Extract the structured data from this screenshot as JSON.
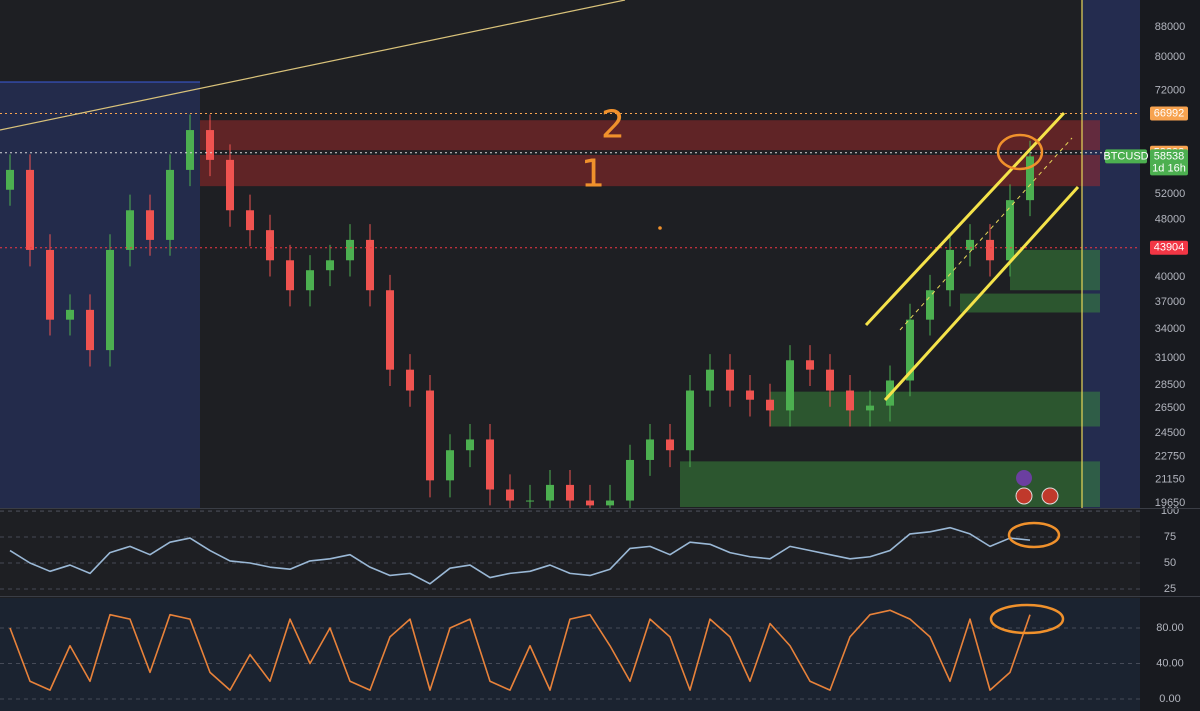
{
  "chart_data": [
    {
      "type": "candlestick",
      "symbol": "BTCUSD",
      "last_price": 58538,
      "countdown": "1d 16h",
      "log_scale": true,
      "ylim": [
        19340,
        95800
      ],
      "yticks": [
        88000,
        80000,
        72000,
        52000,
        48000,
        40000,
        37000,
        34000,
        31000,
        28500,
        26500,
        24500,
        22750,
        21150,
        19650
      ],
      "up_color": "#4caf50",
      "down_color": "#ef5350",
      "open": [
        52700,
        56100,
        43600,
        35000,
        36100,
        31800,
        43600,
        49400,
        45000,
        56100,
        63600,
        57900,
        49400,
        46400,
        42200,
        38400,
        40900,
        42200,
        45000,
        38400,
        29900,
        28000,
        21100,
        23200,
        24000,
        20500,
        19800,
        19800,
        20800,
        19800,
        19500,
        19800,
        22500,
        24000,
        23200,
        28000,
        29900,
        28000,
        27200,
        26300,
        30800,
        29900,
        28000,
        26300,
        26700,
        28900,
        35000,
        38400,
        43600,
        45000,
        42200,
        51000
      ],
      "high": [
        58900,
        58900,
        45800,
        37900,
        37900,
        45800,
        51900,
        51900,
        58900,
        66800,
        66800,
        60800,
        51900,
        48700,
        44300,
        42900,
        44300,
        47300,
        47300,
        40300,
        31400,
        29400,
        24400,
        25200,
        25200,
        21500,
        20800,
        21800,
        21800,
        20800,
        20800,
        23600,
        25200,
        25200,
        29400,
        31400,
        31400,
        29400,
        28600,
        32300,
        32300,
        31400,
        29400,
        28000,
        30300,
        36800,
        40300,
        45800,
        47300,
        47300,
        53600,
        61500
      ],
      "low": [
        50100,
        41400,
        33300,
        33300,
        30200,
        30200,
        41400,
        42800,
        42800,
        53300,
        55000,
        46900,
        44100,
        40100,
        36500,
        36500,
        38900,
        40100,
        36500,
        28400,
        26600,
        20000,
        20000,
        22000,
        19500,
        18800,
        18800,
        18800,
        18800,
        18500,
        18500,
        18800,
        21400,
        22000,
        22000,
        26600,
        26600,
        25800,
        25000,
        25000,
        28400,
        26600,
        25000,
        25000,
        25400,
        27500,
        33300,
        36500,
        41400,
        40100,
        40100,
        48500
      ],
      "close": [
        56100,
        43600,
        35000,
        36100,
        31800,
        43600,
        49400,
        45000,
        56100,
        63600,
        57900,
        49400,
        46400,
        42200,
        38400,
        40900,
        42200,
        45000,
        38400,
        29900,
        28000,
        21100,
        23200,
        24000,
        20500,
        19800,
        19800,
        20800,
        19800,
        19500,
        19800,
        22500,
        24000,
        23200,
        28000,
        29900,
        28000,
        27200,
        26300,
        30800,
        29900,
        28000,
        26300,
        26700,
        28900,
        35000,
        38400,
        43600,
        45000,
        42200,
        51000,
        58538
      ],
      "levels": [
        {
          "value": 66992,
          "color": "#f7a350",
          "line_color": "#f7a350"
        },
        {
          "value": 59203,
          "color": "#f7a350",
          "line_color": "#d8d8d8"
        },
        {
          "value": 43904,
          "color": "#f23645",
          "line_color": "#f23645"
        }
      ],
      "zones": [
        {
          "from": 9.5,
          "low": 59700,
          "high": 65600,
          "color": "#b22a2a"
        },
        {
          "from": 9.5,
          "low": 53300,
          "high": 58800,
          "color": "#b22a2a"
        },
        {
          "from": 50,
          "low": 38400,
          "high": 43600,
          "color": "#3d9a3d"
        },
        {
          "from": 47.5,
          "low": 35800,
          "high": 38000,
          "color": "#3d9a3d"
        },
        {
          "from": 38,
          "low": 25000,
          "high": 27900,
          "color": "#3d9a3d"
        },
        {
          "from": 33.5,
          "low": 19400,
          "high": 22400,
          "color": "#3d9a3d"
        }
      ],
      "annotations": [
        "2",
        "1"
      ]
    },
    {
      "type": "line",
      "ylim": [
        19.2,
        101
      ],
      "yticks": [
        100,
        75,
        50,
        25
      ],
      "series": [
        {
          "color": "#9ab8d6",
          "values": [
            62,
            50,
            42,
            48,
            40,
            60,
            66,
            58,
            70,
            74,
            62,
            52,
            50,
            46,
            44,
            52,
            54,
            58,
            46,
            38,
            40,
            30,
            45,
            48,
            36,
            40,
            42,
            48,
            40,
            38,
            44,
            64,
            66,
            58,
            70,
            68,
            60,
            56,
            54,
            66,
            62,
            58,
            54,
            56,
            62,
            78,
            80,
            84,
            78,
            66,
            74,
            72
          ]
        }
      ]
    },
    {
      "type": "line",
      "ylim": [
        -13.5,
        113.8
      ],
      "yticks": [
        {
          "value": 80,
          "label": "80.00"
        },
        {
          "value": 40,
          "label": "40.00"
        },
        {
          "value": 0,
          "label": "0.00"
        }
      ],
      "series": [
        {
          "color": "#e8823a",
          "values": [
            80,
            20,
            10,
            60,
            20,
            95,
            90,
            30,
            95,
            90,
            30,
            10,
            50,
            20,
            90,
            40,
            80,
            20,
            10,
            70,
            90,
            10,
            80,
            90,
            20,
            10,
            60,
            10,
            90,
            95,
            60,
            20,
            90,
            70,
            10,
            90,
            70,
            20,
            85,
            60,
            20,
            10,
            70,
            95,
            100,
            90,
            70,
            20,
            90,
            10,
            30,
            95
          ]
        }
      ]
    }
  ]
}
